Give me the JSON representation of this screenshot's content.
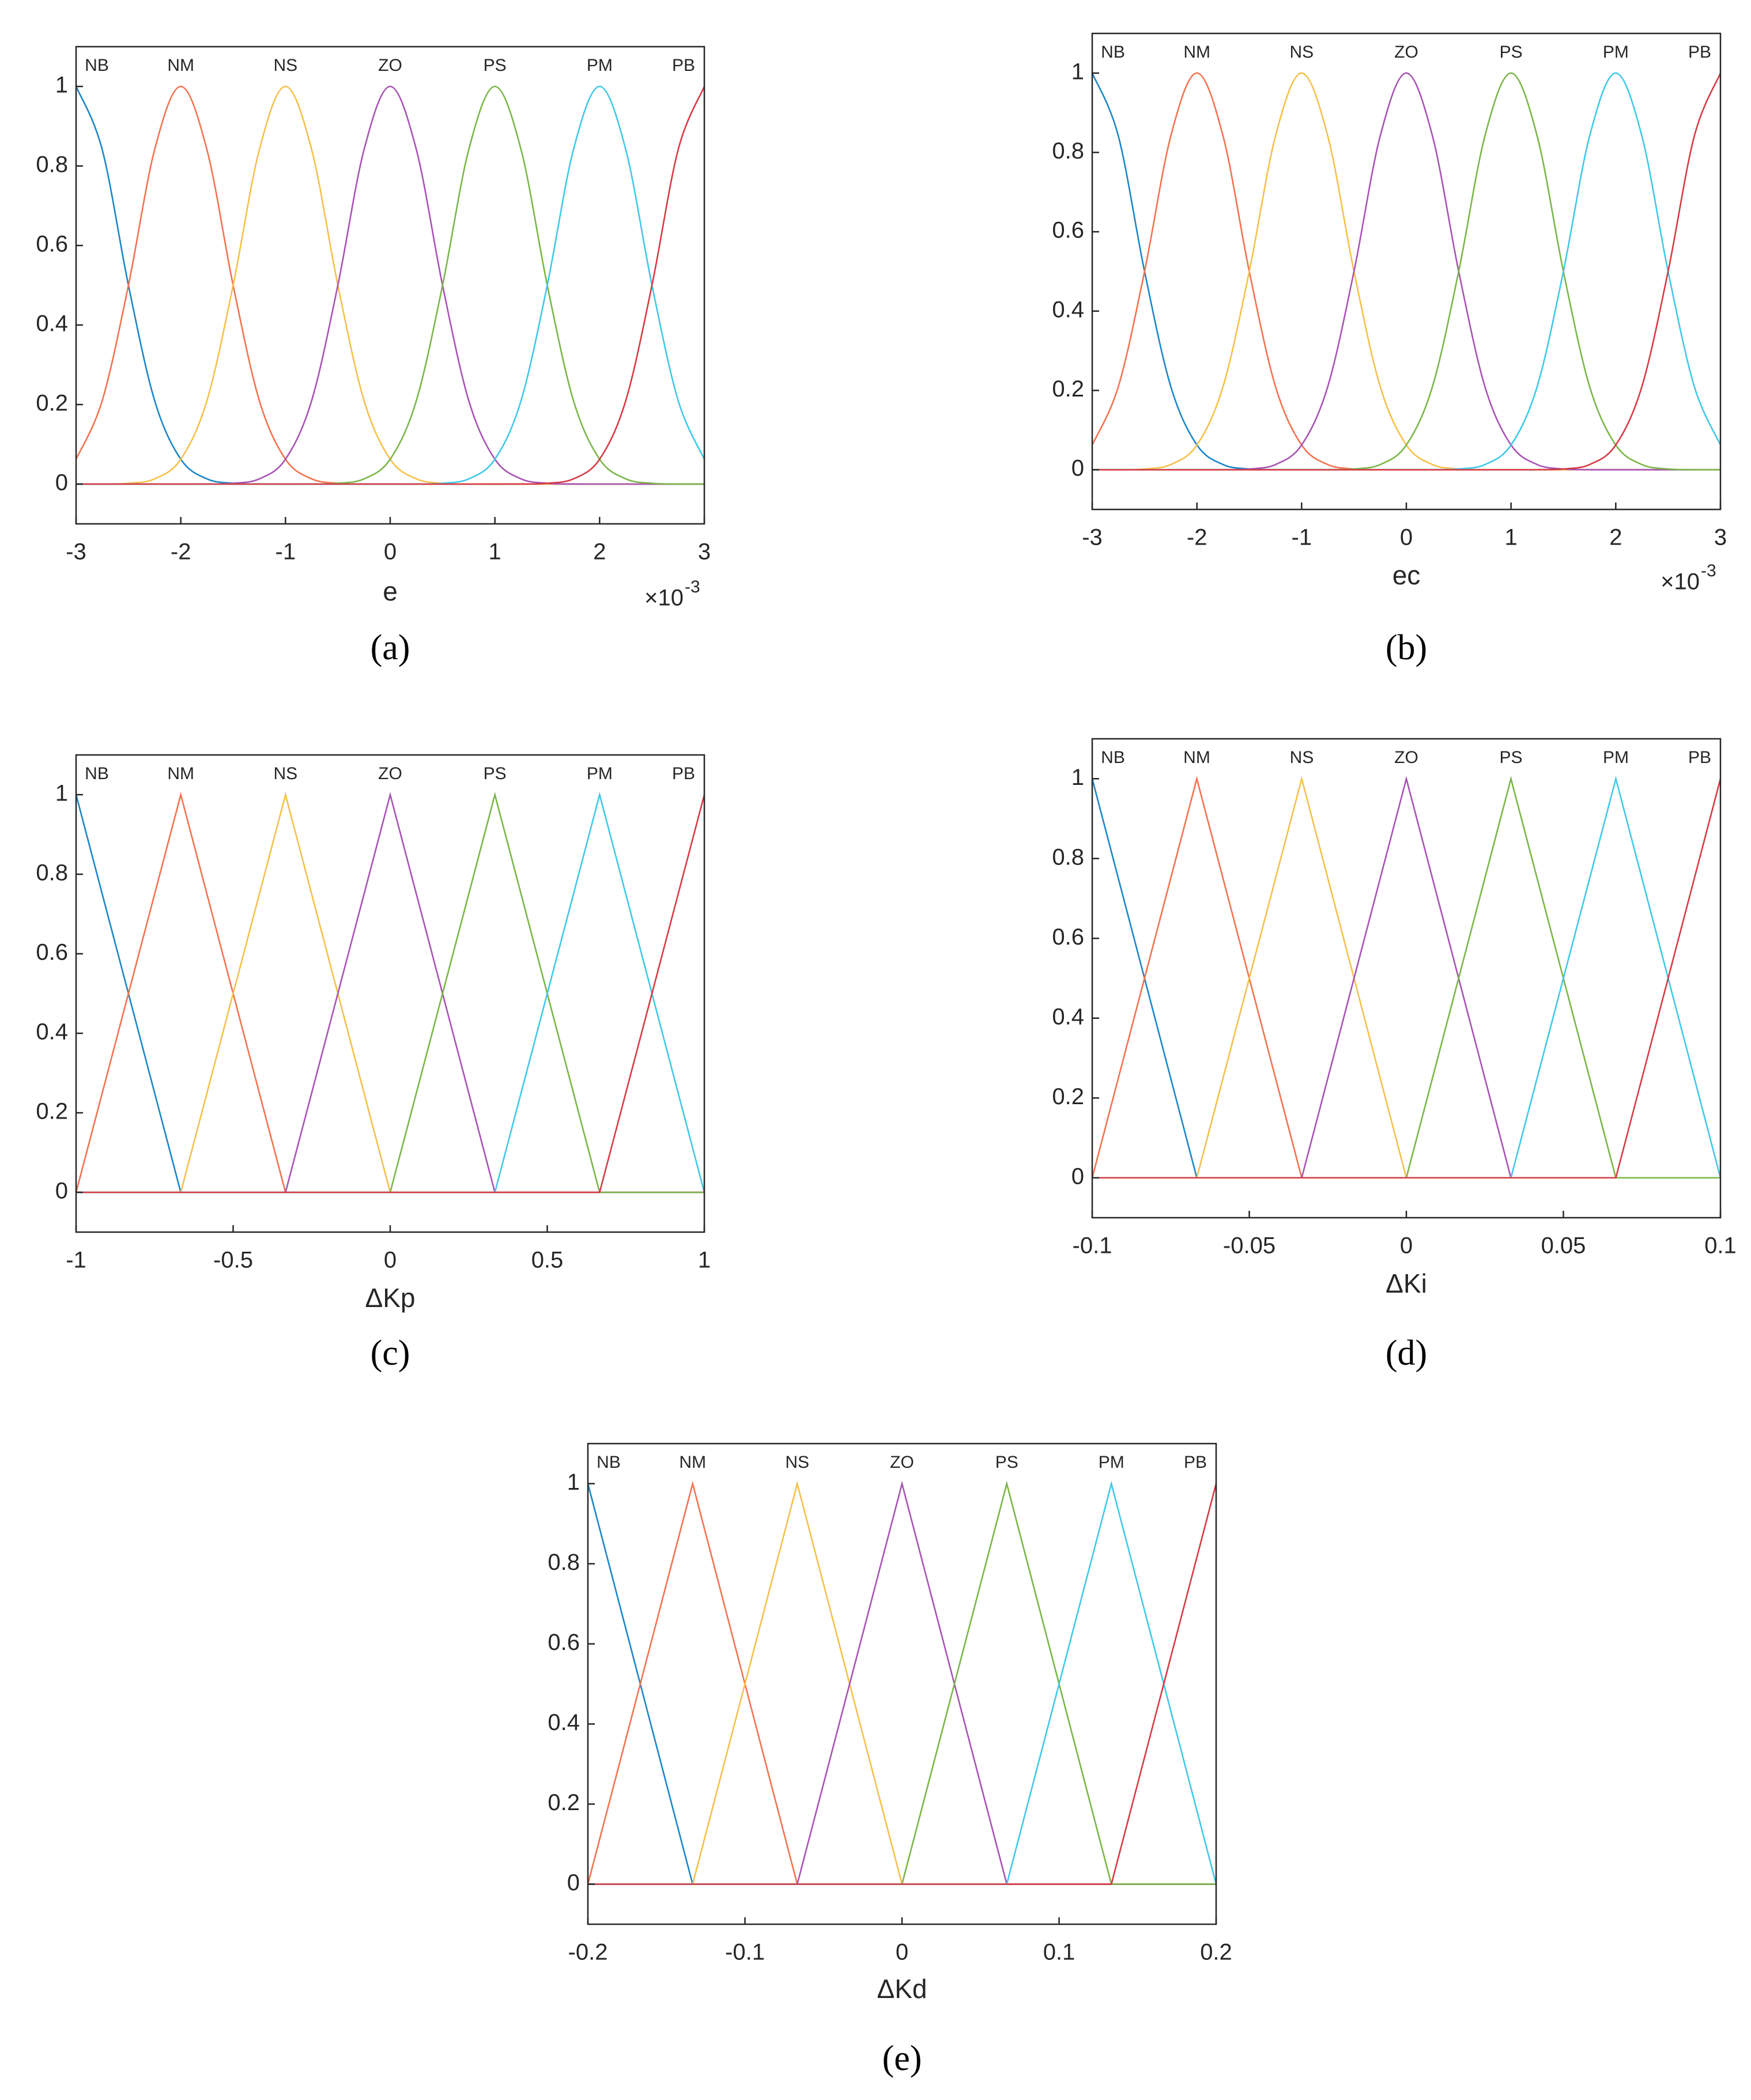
{
  "chart_data": [
    {
      "type": "line",
      "smooth": true,
      "xlabel": "e",
      "x_multiplier_base": "×10",
      "x_multiplier_exponent": "-3",
      "panel_label": "(a)",
      "xlim": [
        -3,
        3
      ],
      "xticks": [
        -3,
        -2,
        -1,
        0,
        1,
        2,
        3
      ],
      "ylim": [
        -0.1,
        1.1
      ],
      "yticks": [
        0,
        0.2,
        0.4,
        0.6,
        0.8,
        1
      ],
      "x": [
        -3,
        -2.75,
        -2.5,
        -2.25,
        -2,
        -1.75,
        -1.5,
        -1.25,
        -1,
        -0.75,
        -0.5,
        -0.25,
        0,
        0.25,
        0.5,
        0.75,
        1,
        1.25,
        1.5,
        1.75,
        2,
        2.25,
        2.5,
        2.75,
        3
      ],
      "series": [
        {
          "name": "NB",
          "color": "#1a86c8",
          "values": [
            1,
            0.8409,
            0.5,
            0.2102,
            0.0625,
            0.0131,
            0.002,
            0.0002,
            0,
            0,
            0,
            0,
            0,
            0,
            0,
            0,
            0,
            0,
            0,
            0,
            0,
            0,
            0,
            0,
            0
          ]
        },
        {
          "name": "NM",
          "color": "#f4724e",
          "values": [
            0.0625,
            0.2102,
            0.5,
            0.8409,
            1,
            0.8409,
            0.5,
            0.2102,
            0.0625,
            0.0131,
            0.002,
            0.0002,
            0,
            0,
            0,
            0,
            0,
            0,
            0,
            0,
            0,
            0,
            0,
            0,
            0
          ]
        },
        {
          "name": "NS",
          "color": "#f6c04a",
          "values": [
            0,
            0.0002,
            0.002,
            0.0131,
            0.0625,
            0.2102,
            0.5,
            0.8409,
            1,
            0.8409,
            0.5,
            0.2102,
            0.0625,
            0.0131,
            0.002,
            0.0002,
            0,
            0,
            0,
            0,
            0,
            0,
            0,
            0,
            0
          ]
        },
        {
          "name": "ZO",
          "color": "#a852b5",
          "values": [
            0,
            0,
            0,
            0,
            0,
            0.0002,
            0.002,
            0.0131,
            0.0625,
            0.2102,
            0.5,
            0.8409,
            1,
            0.8409,
            0.5,
            0.2102,
            0.0625,
            0.0131,
            0.002,
            0.0002,
            0,
            0,
            0,
            0,
            0
          ]
        },
        {
          "name": "PS",
          "color": "#7ab648",
          "values": [
            0,
            0,
            0,
            0,
            0,
            0,
            0,
            0,
            0,
            0.0002,
            0.002,
            0.0131,
            0.0625,
            0.2102,
            0.5,
            0.8409,
            1,
            0.8409,
            0.5,
            0.2102,
            0.0625,
            0.0131,
            0.002,
            0.0002,
            0
          ]
        },
        {
          "name": "PM",
          "color": "#3fc8ea",
          "values": [
            0,
            0,
            0,
            0,
            0,
            0,
            0,
            0,
            0,
            0,
            0,
            0,
            0,
            0.0002,
            0.002,
            0.0131,
            0.0625,
            0.2102,
            0.5,
            0.8409,
            1,
            0.8409,
            0.5,
            0.2102,
            0.0625
          ]
        },
        {
          "name": "PB",
          "color": "#d63a44",
          "values": [
            0,
            0,
            0,
            0,
            0,
            0,
            0,
            0,
            0,
            0,
            0,
            0,
            0,
            0,
            0,
            0,
            0,
            0.0002,
            0.002,
            0.0131,
            0.0625,
            0.2102,
            0.5,
            0.8409,
            1
          ]
        }
      ]
    },
    {
      "type": "line",
      "smooth": true,
      "xlabel": "ec",
      "x_multiplier_base": "×10",
      "x_multiplier_exponent": "-3",
      "panel_label": "(b)",
      "xlim": [
        -3,
        3
      ],
      "xticks": [
        -3,
        -2,
        -1,
        0,
        1,
        2,
        3
      ],
      "ylim": [
        -0.1,
        1.1
      ],
      "yticks": [
        0,
        0.2,
        0.4,
        0.6,
        0.8,
        1
      ],
      "x": [
        -3,
        -2.75,
        -2.5,
        -2.25,
        -2,
        -1.75,
        -1.5,
        -1.25,
        -1,
        -0.75,
        -0.5,
        -0.25,
        0,
        0.25,
        0.5,
        0.75,
        1,
        1.25,
        1.5,
        1.75,
        2,
        2.25,
        2.5,
        2.75,
        3
      ],
      "series": [
        {
          "name": "NB",
          "color": "#1a86c8",
          "values": [
            1,
            0.8409,
            0.5,
            0.2102,
            0.0625,
            0.0131,
            0.002,
            0.0002,
            0,
            0,
            0,
            0,
            0,
            0,
            0,
            0,
            0,
            0,
            0,
            0,
            0,
            0,
            0,
            0,
            0
          ]
        },
        {
          "name": "NM",
          "color": "#f4724e",
          "values": [
            0.0625,
            0.2102,
            0.5,
            0.8409,
            1,
            0.8409,
            0.5,
            0.2102,
            0.0625,
            0.0131,
            0.002,
            0.0002,
            0,
            0,
            0,
            0,
            0,
            0,
            0,
            0,
            0,
            0,
            0,
            0,
            0
          ]
        },
        {
          "name": "NS",
          "color": "#f6c04a",
          "values": [
            0,
            0.0002,
            0.002,
            0.0131,
            0.0625,
            0.2102,
            0.5,
            0.8409,
            1,
            0.8409,
            0.5,
            0.2102,
            0.0625,
            0.0131,
            0.002,
            0.0002,
            0,
            0,
            0,
            0,
            0,
            0,
            0,
            0,
            0
          ]
        },
        {
          "name": "ZO",
          "color": "#a852b5",
          "values": [
            0,
            0,
            0,
            0,
            0,
            0.0002,
            0.002,
            0.0131,
            0.0625,
            0.2102,
            0.5,
            0.8409,
            1,
            0.8409,
            0.5,
            0.2102,
            0.0625,
            0.0131,
            0.002,
            0.0002,
            0,
            0,
            0,
            0,
            0
          ]
        },
        {
          "name": "PS",
          "color": "#7ab648",
          "values": [
            0,
            0,
            0,
            0,
            0,
            0,
            0,
            0,
            0,
            0.0002,
            0.002,
            0.0131,
            0.0625,
            0.2102,
            0.5,
            0.8409,
            1,
            0.8409,
            0.5,
            0.2102,
            0.0625,
            0.0131,
            0.002,
            0.0002,
            0
          ]
        },
        {
          "name": "PM",
          "color": "#3fc8ea",
          "values": [
            0,
            0,
            0,
            0,
            0,
            0,
            0,
            0,
            0,
            0,
            0,
            0,
            0,
            0.0002,
            0.002,
            0.0131,
            0.0625,
            0.2102,
            0.5,
            0.8409,
            1,
            0.8409,
            0.5,
            0.2102,
            0.0625
          ]
        },
        {
          "name": "PB",
          "color": "#d63a44",
          "values": [
            0,
            0,
            0,
            0,
            0,
            0,
            0,
            0,
            0,
            0,
            0,
            0,
            0,
            0,
            0,
            0,
            0,
            0.0002,
            0.002,
            0.0131,
            0.0625,
            0.2102,
            0.5,
            0.8409,
            1
          ]
        }
      ]
    },
    {
      "type": "line",
      "smooth": false,
      "xlabel": "ΔKp",
      "panel_label": "(c)",
      "xlim": [
        -1,
        1
      ],
      "xticks": [
        -1,
        -0.5,
        0,
        0.5,
        1
      ],
      "ylim": [
        -0.1,
        1.1
      ],
      "yticks": [
        0,
        0.2,
        0.4,
        0.6,
        0.8,
        1
      ],
      "x": [
        -1,
        -0.6667,
        -0.3333,
        0,
        0.3333,
        0.6667,
        1
      ],
      "series": [
        {
          "name": "NB",
          "color": "#1a86c8",
          "values": [
            1,
            0,
            0,
            0,
            0,
            0,
            0
          ]
        },
        {
          "name": "NM",
          "color": "#f4724e",
          "values": [
            0,
            1,
            0,
            0,
            0,
            0,
            0
          ]
        },
        {
          "name": "NS",
          "color": "#f6c04a",
          "values": [
            0,
            0,
            1,
            0,
            0,
            0,
            0
          ]
        },
        {
          "name": "ZO",
          "color": "#a852b5",
          "values": [
            0,
            0,
            0,
            1,
            0,
            0,
            0
          ]
        },
        {
          "name": "PS",
          "color": "#7ab648",
          "values": [
            0,
            0,
            0,
            0,
            1,
            0,
            0
          ]
        },
        {
          "name": "PM",
          "color": "#3fc8ea",
          "values": [
            0,
            0,
            0,
            0,
            0,
            1,
            0
          ]
        },
        {
          "name": "PB",
          "color": "#d63a44",
          "values": [
            0,
            0,
            0,
            0,
            0,
            0,
            1
          ]
        }
      ]
    },
    {
      "type": "line",
      "smooth": false,
      "xlabel": "ΔKi",
      "panel_label": "(d)",
      "xlim": [
        -0.1,
        0.1
      ],
      "xticks": [
        -0.1,
        -0.05,
        0,
        0.05,
        0.1
      ],
      "ylim": [
        -0.1,
        1.1
      ],
      "yticks": [
        0,
        0.2,
        0.4,
        0.6,
        0.8,
        1
      ],
      "x": [
        -0.1,
        -0.0667,
        -0.0333,
        0,
        0.0333,
        0.0667,
        0.1
      ],
      "series": [
        {
          "name": "NB",
          "color": "#1a86c8",
          "values": [
            1,
            0,
            0,
            0,
            0,
            0,
            0
          ]
        },
        {
          "name": "NM",
          "color": "#f4724e",
          "values": [
            0,
            1,
            0,
            0,
            0,
            0,
            0
          ]
        },
        {
          "name": "NS",
          "color": "#f6c04a",
          "values": [
            0,
            0,
            1,
            0,
            0,
            0,
            0
          ]
        },
        {
          "name": "ZO",
          "color": "#a852b5",
          "values": [
            0,
            0,
            0,
            1,
            0,
            0,
            0
          ]
        },
        {
          "name": "PS",
          "color": "#7ab648",
          "values": [
            0,
            0,
            0,
            0,
            1,
            0,
            0
          ]
        },
        {
          "name": "PM",
          "color": "#3fc8ea",
          "values": [
            0,
            0,
            0,
            0,
            0,
            1,
            0
          ]
        },
        {
          "name": "PB",
          "color": "#d63a44",
          "values": [
            0,
            0,
            0,
            0,
            0,
            0,
            1
          ]
        }
      ]
    },
    {
      "type": "line",
      "smooth": false,
      "xlabel": "ΔKd",
      "panel_label": "(e)",
      "xlim": [
        -0.2,
        0.2
      ],
      "xticks": [
        -0.2,
        -0.1,
        0,
        0.1,
        0.2
      ],
      "ylim": [
        -0.1,
        1.1
      ],
      "yticks": [
        0,
        0.2,
        0.4,
        0.6,
        0.8,
        1
      ],
      "x": [
        -0.2,
        -0.1333,
        -0.0667,
        0,
        0.0667,
        0.1333,
        0.2
      ],
      "series": [
        {
          "name": "NB",
          "color": "#1a86c8",
          "values": [
            1,
            0,
            0,
            0,
            0,
            0,
            0
          ]
        },
        {
          "name": "NM",
          "color": "#f4724e",
          "values": [
            0,
            1,
            0,
            0,
            0,
            0,
            0
          ]
        },
        {
          "name": "NS",
          "color": "#f6c04a",
          "values": [
            0,
            0,
            1,
            0,
            0,
            0,
            0
          ]
        },
        {
          "name": "ZO",
          "color": "#a852b5",
          "values": [
            0,
            0,
            0,
            1,
            0,
            0,
            0
          ]
        },
        {
          "name": "PS",
          "color": "#7ab648",
          "values": [
            0,
            0,
            0,
            0,
            1,
            0,
            0
          ]
        },
        {
          "name": "PM",
          "color": "#3fc8ea",
          "values": [
            0,
            0,
            0,
            0,
            0,
            1,
            0
          ]
        },
        {
          "name": "PB",
          "color": "#d63a44",
          "values": [
            0,
            0,
            0,
            0,
            0,
            0,
            1
          ]
        }
      ]
    }
  ]
}
